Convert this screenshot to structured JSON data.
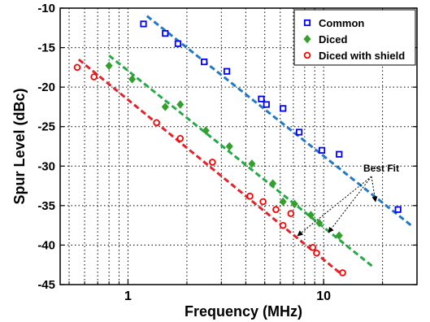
{
  "chart_data": {
    "type": "scatter",
    "title": "",
    "xlabel": "Frequency (MHz)",
    "ylabel": "Spur Level (dBc)",
    "xscale": "log",
    "xlim": [
      0.45,
      30
    ],
    "ylim": [
      -45,
      -10
    ],
    "x_tick_labels": [
      {
        "value": 1,
        "label": "1"
      },
      {
        "value": 10,
        "label": "10"
      }
    ],
    "y_ticks": [
      -10,
      -15,
      -20,
      -25,
      -30,
      -35,
      -40,
      -45
    ],
    "y_tick_labels": [
      "-10",
      "-15",
      "-20",
      "-25",
      "-30",
      "-35",
      "-40",
      "-45"
    ],
    "grid": true,
    "legend_position": "top-right",
    "series": [
      {
        "name": "Common",
        "color": "#0000ff",
        "marker": "square",
        "points": [
          [
            1.2,
            -12.0
          ],
          [
            1.55,
            -13.2
          ],
          [
            1.8,
            -14.5
          ],
          [
            2.45,
            -16.8
          ],
          [
            3.2,
            -18.0
          ],
          [
            4.8,
            -21.5
          ],
          [
            5.1,
            -22.2
          ],
          [
            6.2,
            -22.7
          ],
          [
            7.5,
            -25.7
          ],
          [
            9.8,
            -28.0
          ],
          [
            12.0,
            -28.5
          ],
          [
            24.0,
            -35.5
          ]
        ],
        "fit": {
          "x": [
            1.25,
            28.0
          ],
          "y": [
            -11.0,
            -37.5
          ],
          "color": "#1f78c8"
        }
      },
      {
        "name": "Diced",
        "color": "#33a02c",
        "marker": "diamond",
        "points": [
          [
            0.8,
            -17.3
          ],
          [
            1.05,
            -19.0
          ],
          [
            1.55,
            -22.5
          ],
          [
            1.85,
            -22.2
          ],
          [
            2.5,
            -25.5
          ],
          [
            3.3,
            -27.5
          ],
          [
            4.3,
            -29.7
          ],
          [
            5.5,
            -32.2
          ],
          [
            6.2,
            -34.5
          ],
          [
            7.1,
            -34.8
          ],
          [
            8.6,
            -36.2
          ],
          [
            9.5,
            -37.2
          ],
          [
            12.0,
            -38.8
          ]
        ],
        "fit": {
          "x": [
            0.8,
            18.0
          ],
          "y": [
            -16.0,
            -42.8
          ],
          "color": "#22aa44"
        }
      },
      {
        "name": "Diced with shield",
        "color": "#ff0000",
        "marker": "circle",
        "points": [
          [
            0.55,
            -17.5
          ],
          [
            0.67,
            -18.7
          ],
          [
            1.4,
            -24.5
          ],
          [
            1.85,
            -26.5
          ],
          [
            2.7,
            -29.5
          ],
          [
            4.2,
            -33.8
          ],
          [
            4.9,
            -34.5
          ],
          [
            5.7,
            -35.5
          ],
          [
            6.2,
            -37.5
          ],
          [
            6.8,
            -36.0
          ],
          [
            8.8,
            -40.3
          ],
          [
            9.2,
            -41.0
          ],
          [
            12.5,
            -43.5
          ]
        ],
        "fit": {
          "x": [
            0.56,
            12.5
          ],
          "y": [
            -16.5,
            -43.8
          ],
          "color": "#e8202a"
        }
      }
    ],
    "annotations": [
      {
        "text": "Best Fit"
      }
    ]
  }
}
